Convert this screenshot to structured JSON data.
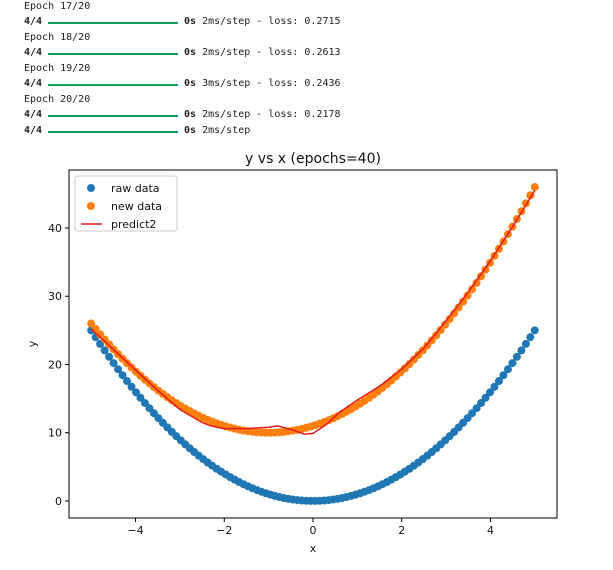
{
  "console": {
    "epochs": [
      {
        "header": "Epoch 17/20",
        "step": "4/4",
        "time": "0s",
        "rest": " 2ms/step - loss: 0.2715"
      },
      {
        "header": "Epoch 18/20",
        "step": "4/4",
        "time": "0s",
        "rest": " 2ms/step - loss: 0.2613"
      },
      {
        "header": "Epoch 19/20",
        "step": "4/4",
        "time": "0s",
        "rest": " 3ms/step - loss: 0.2436"
      },
      {
        "header": "Epoch 20/20",
        "step": "4/4",
        "time": "0s",
        "rest": " 2ms/step - loss: 0.2178"
      }
    ],
    "final": {
      "step": "4/4",
      "time": "0s",
      "rest": " 2ms/step"
    },
    "bar_color": "#0f9d58"
  },
  "chart_data": {
    "type": "scatter",
    "title": "y vs x (epochs=40)",
    "xlabel": "x",
    "ylabel": "y",
    "xlim": [
      -5.5,
      5.5
    ],
    "ylim": [
      -2.5,
      48.5
    ],
    "xticks": [
      -4,
      -2,
      0,
      2,
      4
    ],
    "yticks": [
      0,
      10,
      20,
      30,
      40
    ],
    "legend_position": "top-left",
    "grid": false,
    "series": [
      {
        "name": "raw data",
        "kind": "scatter",
        "color": "#1f77b4",
        "x_range": [
          -5,
          5
        ],
        "n_points": 100,
        "formula": "y = x^2"
      },
      {
        "name": "new data",
        "kind": "scatter",
        "color": "#ff7f0e",
        "x_range": [
          -5,
          5
        ],
        "n_points": 100,
        "formula": "y = x^2 + 2x + 11"
      },
      {
        "name": "predict2",
        "kind": "line",
        "color": "#e41a1c",
        "x": [
          -5.0,
          -4.5,
          -4.0,
          -3.5,
          -3.0,
          -2.5,
          -2.3,
          -2.0,
          -1.5,
          -1.0,
          -0.8,
          -0.5,
          -0.2,
          0.0,
          0.3,
          0.6,
          1.0,
          1.5,
          2.0,
          2.5,
          3.0,
          3.5,
          4.0,
          4.5,
          5.0
        ],
        "y": [
          25.2,
          22.2,
          19.2,
          16.2,
          13.4,
          11.5,
          11.0,
          10.6,
          10.6,
          10.8,
          11.0,
          10.5,
          9.8,
          9.9,
          11.2,
          13.0,
          14.8,
          16.8,
          19.3,
          22.4,
          26.4,
          30.6,
          35.2,
          40.2,
          45.5
        ]
      }
    ]
  }
}
